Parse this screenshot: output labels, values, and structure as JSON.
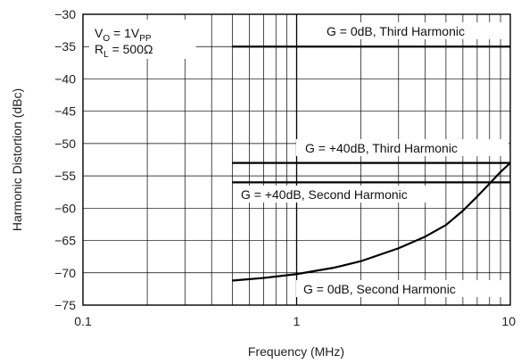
{
  "chart_data": {
    "type": "line",
    "xlabel": "Frequency (MHz)",
    "ylabel": "Harmonic Distortion (dBc)",
    "x_scale": "log",
    "xlim": [
      0.1,
      10
    ],
    "ylim": [
      -75,
      -30
    ],
    "x_ticks": [
      0.1,
      1,
      10
    ],
    "x_tick_labels": [
      "0.1",
      "1",
      "10"
    ],
    "y_ticks": [
      -30,
      -35,
      -40,
      -45,
      -50,
      -55,
      -60,
      -65,
      -70,
      -75
    ],
    "y_tick_labels": [
      "−30",
      "−35",
      "−40",
      "−45",
      "−50",
      "−55",
      "−60",
      "−65",
      "−70",
      "−75"
    ],
    "grid": true,
    "conditions": {
      "vo_main": "V",
      "vo_sub": "O",
      "vo_eq": " = 1V",
      "vo_unit_sub": "PP",
      "rl_main": "R",
      "rl_sub": "L",
      "rl_eq": " = 500Ω"
    },
    "series": [
      {
        "name": "G = 0dB, Third Harmonic",
        "x": [
          0.5,
          10
        ],
        "y": [
          -35,
          -35
        ]
      },
      {
        "name": "G = +40dB, Third Harmonic",
        "x": [
          0.5,
          10
        ],
        "y": [
          -53,
          -53
        ]
      },
      {
        "name": "G = +40dB, Second Harmonic",
        "x": [
          0.5,
          10
        ],
        "y": [
          -56,
          -56
        ]
      },
      {
        "name": "G = 0dB, Second Harmonic",
        "x": [
          0.5,
          0.7,
          1,
          1.5,
          2,
          3,
          4,
          5,
          6,
          7,
          8,
          9,
          10
        ],
        "y": [
          -71.2,
          -70.8,
          -70.2,
          -69.2,
          -68.2,
          -66.2,
          -64.4,
          -62.6,
          -60.4,
          -58.2,
          -56.2,
          -54.4,
          -53
        ]
      }
    ]
  }
}
